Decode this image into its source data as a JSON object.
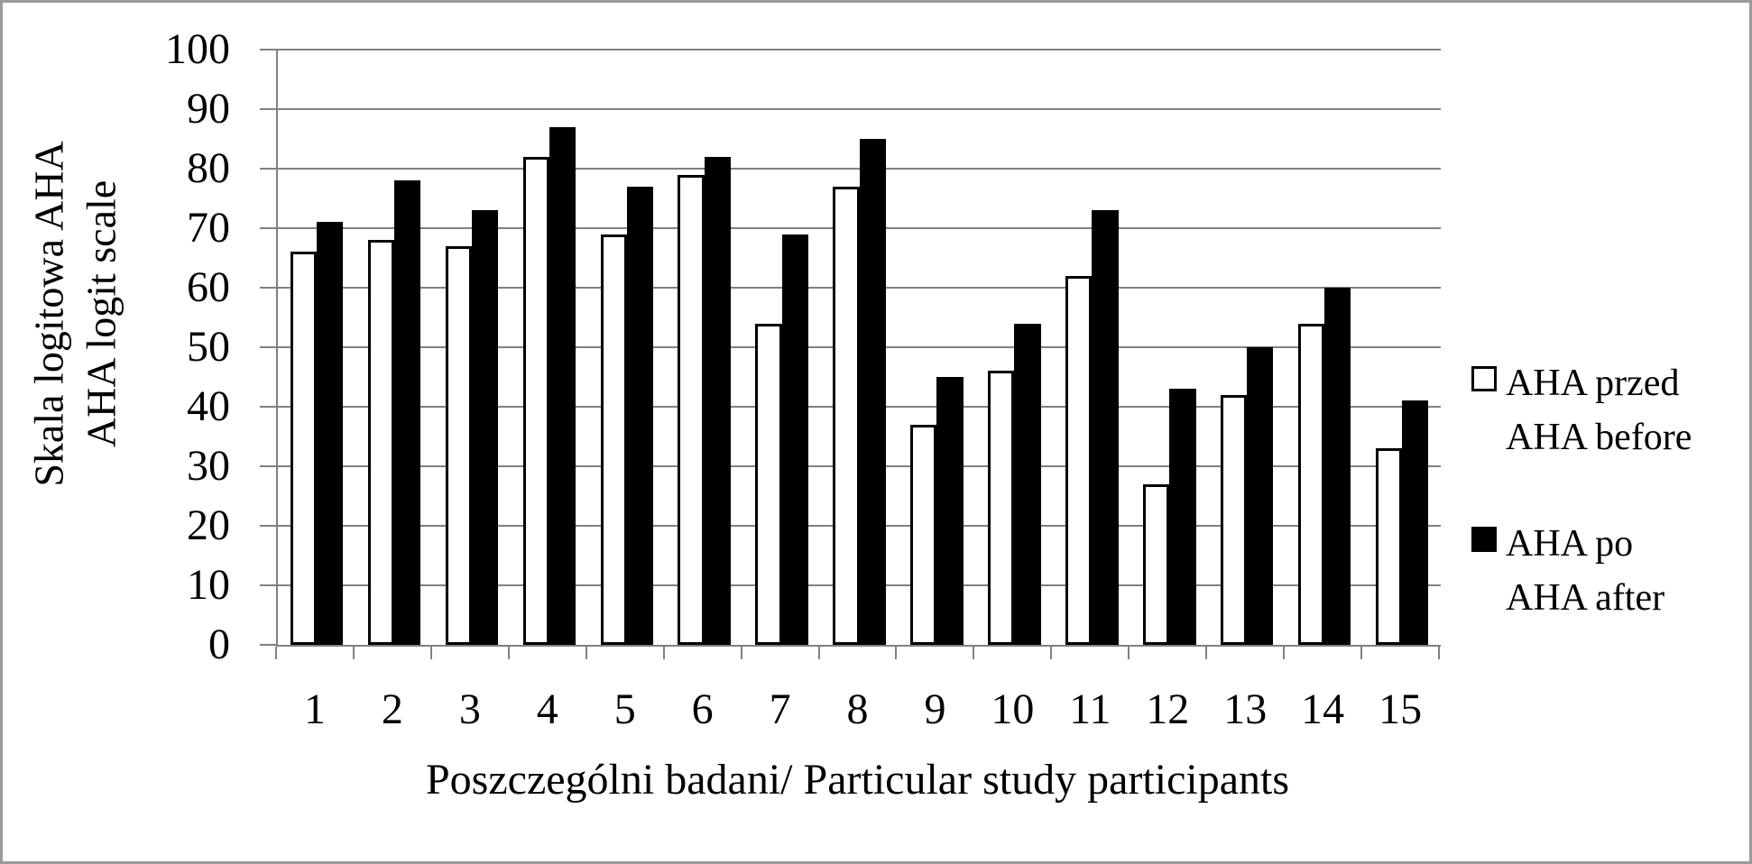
{
  "figure": {
    "background": "#ffffff",
    "border_color": "#9a9a9a",
    "gridline_color": "#808080",
    "text_color": "#000000"
  },
  "chart_data": {
    "type": "bar",
    "categories": [
      "1",
      "2",
      "3",
      "4",
      "5",
      "6",
      "7",
      "8",
      "9",
      "10",
      "11",
      "12",
      "13",
      "14",
      "15"
    ],
    "series": [
      {
        "name": "AHA przed / AHA before",
        "legend_lines": [
          "AHA przed",
          "AHA before"
        ],
        "fill": "#ffffff",
        "border": "#000000",
        "values": [
          66,
          68,
          67,
          82,
          69,
          79,
          54,
          77,
          37,
          46,
          62,
          27,
          42,
          54,
          33
        ]
      },
      {
        "name": "AHA po / AHA after",
        "legend_lines": [
          "AHA po",
          "AHA after"
        ],
        "fill": "#000000",
        "border": "#000000",
        "values": [
          71,
          78,
          73,
          87,
          77,
          82,
          69,
          85,
          45,
          54,
          73,
          43,
          50,
          60,
          41
        ]
      }
    ],
    "xlabel": "Poszczególni badani/ Particular study participants",
    "ylabel_lines": [
      "Skala logitowa AHA",
      "AHA logit scale"
    ],
    "ylim": [
      0,
      100
    ],
    "yticks": [
      0,
      10,
      20,
      30,
      40,
      50,
      60,
      70,
      80,
      90,
      100
    ],
    "grid": true,
    "legend_position": "right"
  }
}
